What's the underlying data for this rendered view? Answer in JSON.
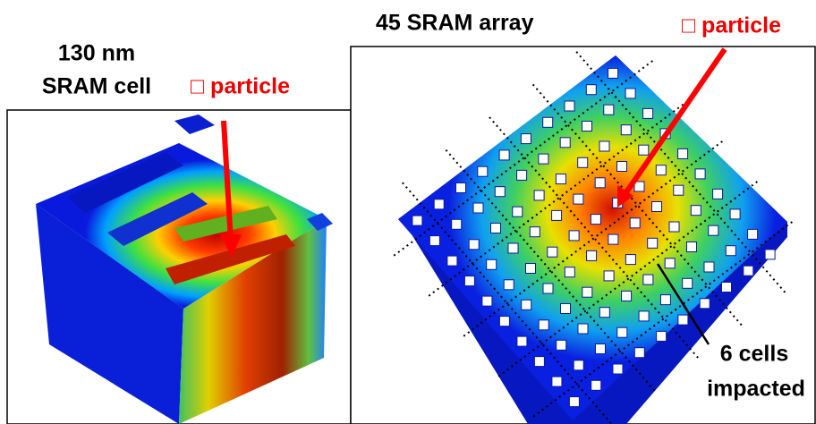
{
  "left_panel": {
    "title_lines": [
      "130 nm",
      "SRAM cell"
    ],
    "particle_label": "□ particle"
  },
  "right_panel": {
    "title": "45 SRAM array",
    "particle_label": "□ particle",
    "annotation_lines": [
      "6 cells",
      "impacted"
    ]
  }
}
